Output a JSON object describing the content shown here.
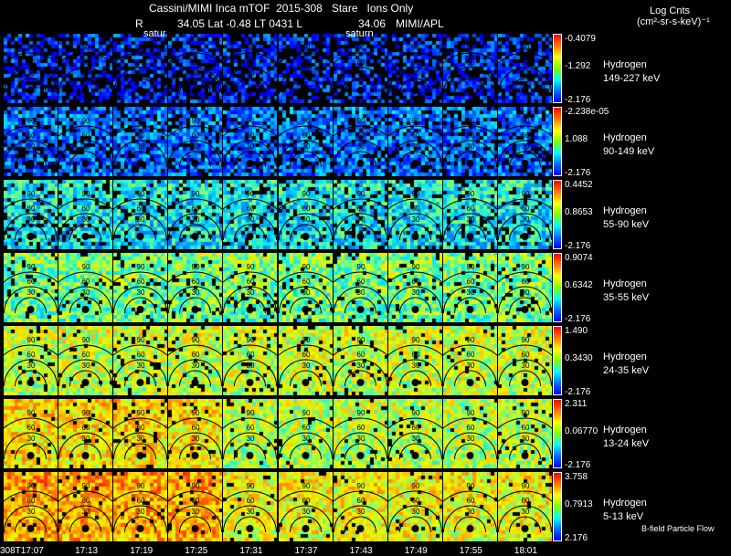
{
  "title_line1": "Cassini/MIMI Inca mTOF  2015-308   Stare   Ions Only",
  "title_line2": {
    "r_label": "R",
    "values": "34.05 Lat -0.48 LT 0431 L",
    "l_value": "34.06",
    "credit": "MIMI/APL"
  },
  "units": {
    "line1": "Log Cnts",
    "line2": "(cm²-sr-s-keV)⁻¹"
  },
  "satur_labels": [
    "satur",
    "saturn"
  ],
  "footer_note": "B-field Particle Flow",
  "chart_data": {
    "type": "heatmap",
    "title": "Cassini/MIMI Inca mTOF 2015-308 Stare Ions Only",
    "times": [
      "308T17:07",
      "17:13",
      "17:19",
      "17:25",
      "17:31",
      "17:37",
      "17:43",
      "17:49",
      "17:55",
      "18:01"
    ],
    "ring_labels": [
      "90",
      "60",
      "30"
    ],
    "rows": [
      {
        "species": "Hydrogen",
        "energy": "149-227 keV",
        "cmax": "-0.4079",
        "cmid": "-1.292",
        "cmin": "-2.176",
        "level": 0.1,
        "fill": 0.55
      },
      {
        "species": "Hydrogen",
        "energy": "90-149 keV",
        "cmax": "-2.238e-05",
        "cmid": "1.088",
        "cmin": "-2.176",
        "level": 0.2,
        "fill": 0.78
      },
      {
        "species": "Hydrogen",
        "energy": "55-90 keV",
        "cmax": "0.4452",
        "cmid": "0.8653",
        "cmin": "-2.176",
        "level": 0.38,
        "fill": 0.85
      },
      {
        "species": "Hydrogen",
        "energy": "35-55 keV",
        "cmax": "0.9074",
        "cmid": "0.6342",
        "cmin": "-2.176",
        "level": 0.52,
        "fill": 0.9
      },
      {
        "species": "Hydrogen",
        "energy": "24-35 keV",
        "cmax": "1.490",
        "cmid": "0.3430",
        "cmin": "-2.176",
        "level": 0.62,
        "fill": 0.92
      },
      {
        "species": "Hydrogen",
        "energy": "13-24 keV",
        "cmax": "2.311",
        "cmid": "0.06770",
        "cmin": "-2.176",
        "level": 0.72,
        "fill": 0.94
      },
      {
        "species": "Hydrogen",
        "energy": "5-13 keV",
        "cmax": "3.758",
        "cmid": "0.7913",
        "cmin": "2.176",
        "level": 0.8,
        "fill": 0.95
      }
    ]
  }
}
